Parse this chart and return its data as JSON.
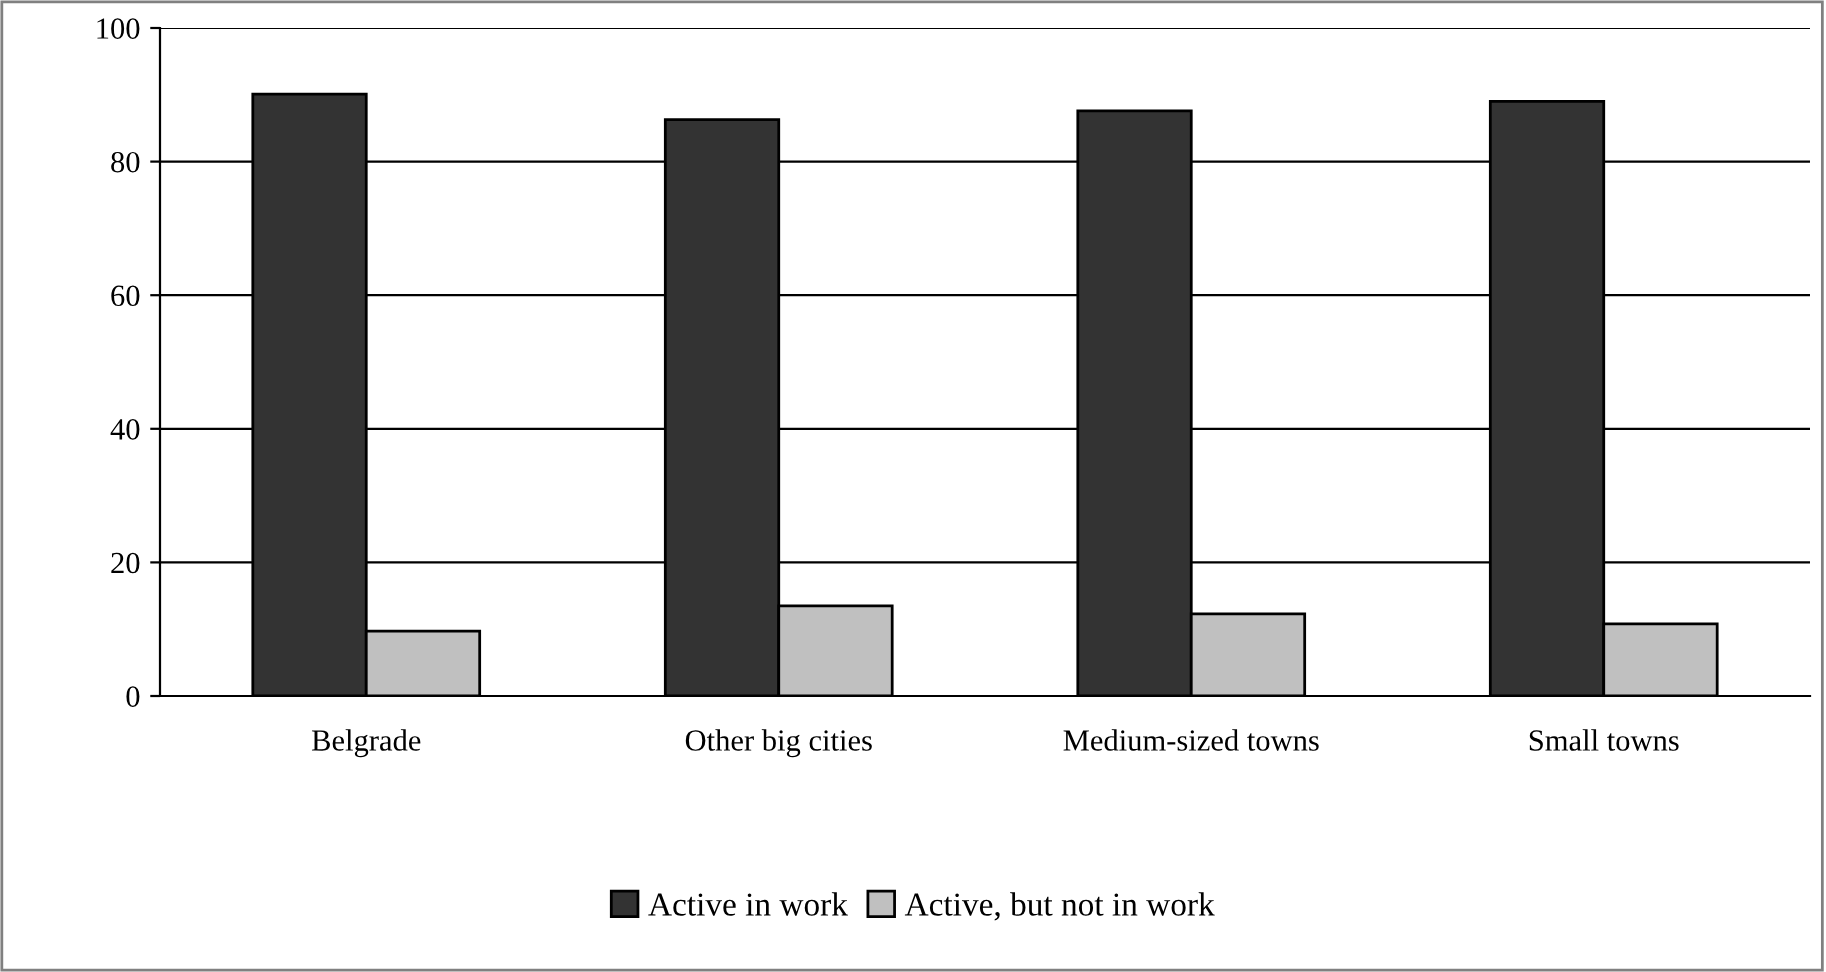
{
  "chart_data": {
    "type": "bar",
    "categories": [
      "Belgrade",
      "Other big cities",
      "Medium-sized towns",
      "Small towns"
    ],
    "series": [
      {
        "name": "Active in work",
        "color": "#333333",
        "values": [
          90.1,
          86.3,
          87.6,
          89.0
        ]
      },
      {
        "name": "Active, but not in work",
        "color": "#c0c0c0",
        "values": [
          9.7,
          13.5,
          12.3,
          10.8
        ]
      }
    ],
    "ylim": [
      0,
      100
    ],
    "yticks": [
      0,
      20,
      40,
      60,
      80,
      100
    ],
    "grid": "y",
    "legend": "bottom"
  }
}
